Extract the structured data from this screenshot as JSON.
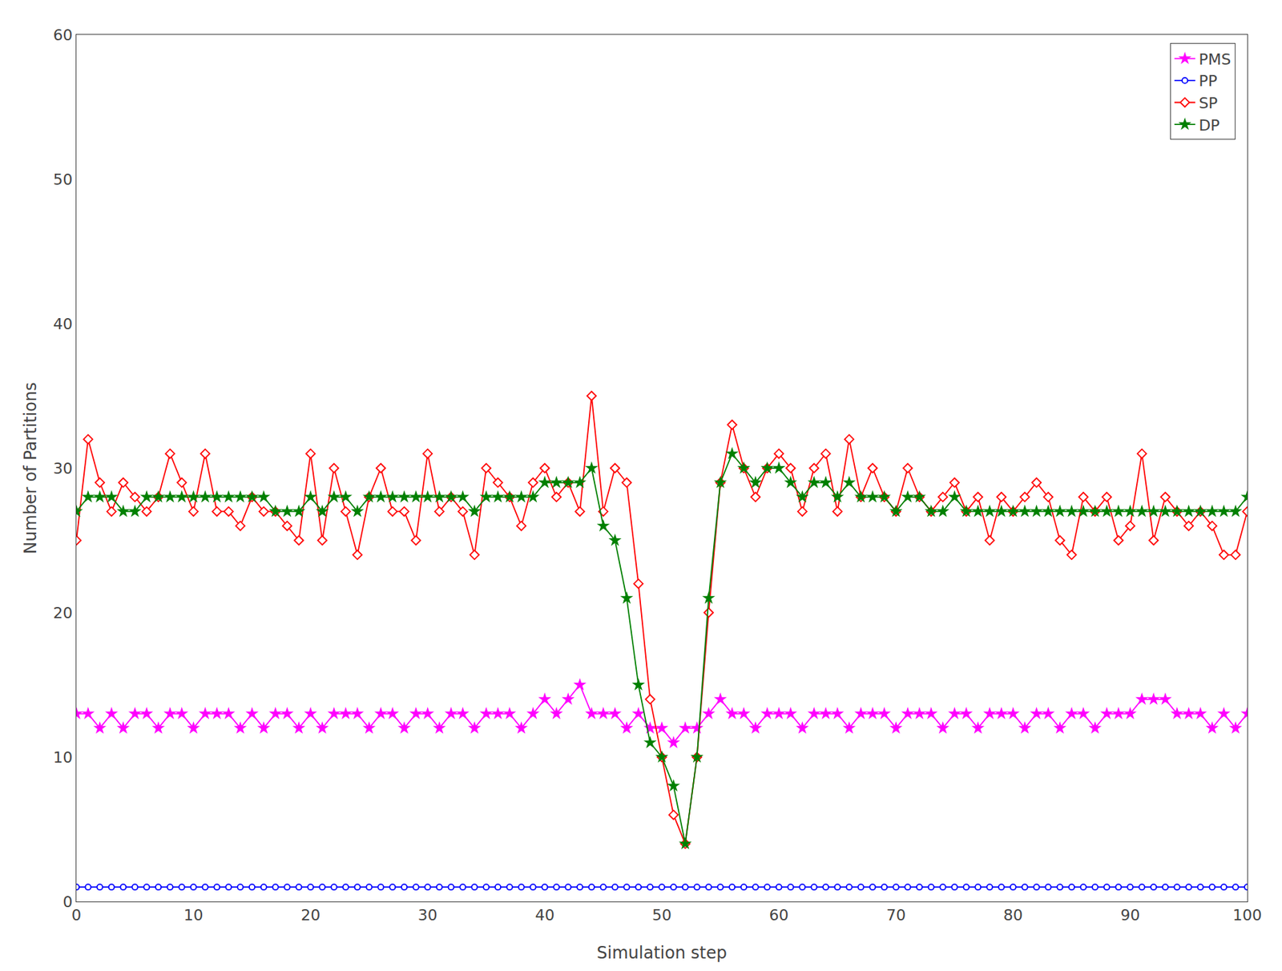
{
  "chart_data": {
    "type": "line",
    "xlabel": "Simulation step",
    "ylabel": "Number of Partitions",
    "x": [
      0,
      1,
      2,
      3,
      4,
      5,
      6,
      7,
      8,
      9,
      10,
      11,
      12,
      13,
      14,
      15,
      16,
      17,
      18,
      19,
      20,
      21,
      22,
      23,
      24,
      25,
      26,
      27,
      28,
      29,
      30,
      31,
      32,
      33,
      34,
      35,
      36,
      37,
      38,
      39,
      40,
      41,
      42,
      43,
      44,
      45,
      46,
      47,
      48,
      49,
      50,
      51,
      52,
      53,
      54,
      55,
      56,
      57,
      58,
      59,
      60,
      61,
      62,
      63,
      64,
      65,
      66,
      67,
      68,
      69,
      70,
      71,
      72,
      73,
      74,
      75,
      76,
      77,
      78,
      79,
      80,
      81,
      82,
      83,
      84,
      85,
      86,
      87,
      88,
      89,
      90,
      91,
      92,
      93,
      94,
      95,
      96,
      97,
      98,
      99,
      100
    ],
    "xlim": [
      0,
      100
    ],
    "ylim": [
      0,
      60
    ],
    "xticks": [
      0,
      10,
      20,
      30,
      40,
      50,
      60,
      70,
      80,
      90,
      100
    ],
    "yticks": [
      0,
      10,
      20,
      30,
      40,
      50,
      60
    ],
    "grid": false,
    "legend": "upper right",
    "series": [
      {
        "name": "PMS",
        "color": "#ff00ff",
        "marker": "star",
        "values": [
          13,
          13,
          12,
          13,
          12,
          13,
          13,
          12,
          13,
          13,
          12,
          13,
          13,
          13,
          12,
          13,
          12,
          13,
          13,
          12,
          13,
          12,
          13,
          13,
          13,
          12,
          13,
          13,
          12,
          13,
          13,
          12,
          13,
          13,
          12,
          13,
          13,
          13,
          12,
          13,
          14,
          13,
          14,
          15,
          13,
          13,
          13,
          12,
          13,
          12,
          12,
          11,
          12,
          12,
          13,
          14,
          13,
          13,
          12,
          13,
          13,
          13,
          12,
          13,
          13,
          13,
          12,
          13,
          13,
          13,
          12,
          13,
          13,
          13,
          12,
          13,
          13,
          12,
          13,
          13,
          13,
          12,
          13,
          13,
          12,
          13,
          13,
          12,
          13,
          13,
          13,
          14,
          14,
          14,
          13,
          13,
          13,
          12,
          13,
          12,
          13
        ]
      },
      {
        "name": "PP",
        "color": "#0000ff",
        "marker": "circle-open",
        "values": [
          1,
          1,
          1,
          1,
          1,
          1,
          1,
          1,
          1,
          1,
          1,
          1,
          1,
          1,
          1,
          1,
          1,
          1,
          1,
          1,
          1,
          1,
          1,
          1,
          1,
          1,
          1,
          1,
          1,
          1,
          1,
          1,
          1,
          1,
          1,
          1,
          1,
          1,
          1,
          1,
          1,
          1,
          1,
          1,
          1,
          1,
          1,
          1,
          1,
          1,
          1,
          1,
          1,
          1,
          1,
          1,
          1,
          1,
          1,
          1,
          1,
          1,
          1,
          1,
          1,
          1,
          1,
          1,
          1,
          1,
          1,
          1,
          1,
          1,
          1,
          1,
          1,
          1,
          1,
          1,
          1,
          1,
          1,
          1,
          1,
          1,
          1,
          1,
          1,
          1,
          1,
          1,
          1,
          1,
          1,
          1,
          1,
          1,
          1,
          1,
          1
        ]
      },
      {
        "name": "SP",
        "color": "#ff0000",
        "marker": "diamond-open",
        "values": [
          25,
          32,
          29,
          27,
          29,
          28,
          27,
          28,
          31,
          29,
          27,
          31,
          27,
          27,
          26,
          28,
          27,
          27,
          26,
          25,
          31,
          25,
          30,
          27,
          24,
          28,
          30,
          27,
          27,
          25,
          31,
          27,
          28,
          27,
          24,
          30,
          29,
          28,
          26,
          29,
          30,
          28,
          29,
          27,
          35,
          27,
          30,
          29,
          22,
          14,
          10,
          6,
          4,
          10,
          20,
          29,
          33,
          30,
          28,
          30,
          31,
          30,
          27,
          30,
          31,
          27,
          32,
          28,
          30,
          28,
          27,
          30,
          28,
          27,
          28,
          29,
          27,
          28,
          25,
          28,
          27,
          28,
          29,
          28,
          25,
          24,
          28,
          27,
          28,
          25,
          26,
          31,
          25,
          28,
          27,
          26,
          27,
          26,
          24,
          24,
          27
        ]
      },
      {
        "name": "DP",
        "color": "#008000",
        "marker": "star",
        "values": [
          27,
          28,
          28,
          28,
          27,
          27,
          28,
          28,
          28,
          28,
          28,
          28,
          28,
          28,
          28,
          28,
          28,
          27,
          27,
          27,
          28,
          27,
          28,
          28,
          27,
          28,
          28,
          28,
          28,
          28,
          28,
          28,
          28,
          28,
          27,
          28,
          28,
          28,
          28,
          28,
          29,
          29,
          29,
          29,
          30,
          26,
          25,
          21,
          15,
          11,
          10,
          8,
          4,
          10,
          21,
          29,
          31,
          30,
          29,
          30,
          30,
          29,
          28,
          29,
          29,
          28,
          29,
          28,
          28,
          28,
          27,
          28,
          28,
          27,
          27,
          28,
          27,
          27,
          27,
          27,
          27,
          27,
          27,
          27,
          27,
          27,
          27,
          27,
          27,
          27,
          27,
          27,
          27,
          27,
          27,
          27,
          27,
          27,
          27,
          27,
          28
        ]
      }
    ]
  }
}
